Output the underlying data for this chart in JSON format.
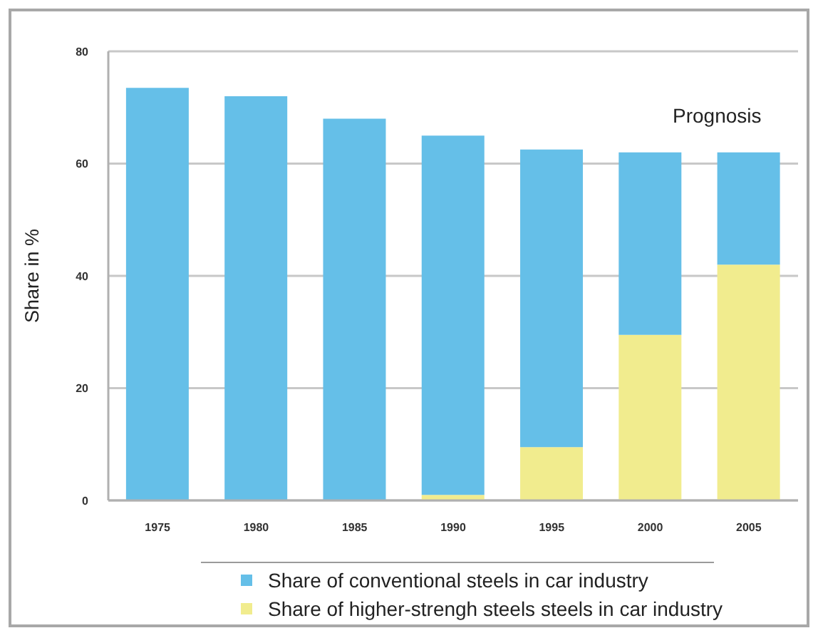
{
  "chart_data": {
    "type": "bar",
    "stacked": true,
    "ylabel": "Share in %",
    "categories": [
      "1975",
      "1980",
      "1985",
      "1990",
      "1995",
      "2000",
      "2005"
    ],
    "series": [
      {
        "name": "Share of higher-strengh steels steels in car industry",
        "color": "#f1ec8e",
        "values": [
          0,
          0,
          0,
          1,
          9.5,
          29.5,
          42
        ]
      },
      {
        "name": "Share of conventional steels in car industry",
        "color": "#65bfe8",
        "values": [
          73.5,
          72,
          68,
          64,
          53,
          32.5,
          20
        ]
      }
    ],
    "ylim": [
      0,
      80
    ],
    "yticks": [
      0,
      20,
      40,
      60,
      80
    ],
    "grid": "y",
    "legend": "bottom",
    "annotations": [
      "Prognosis"
    ]
  }
}
